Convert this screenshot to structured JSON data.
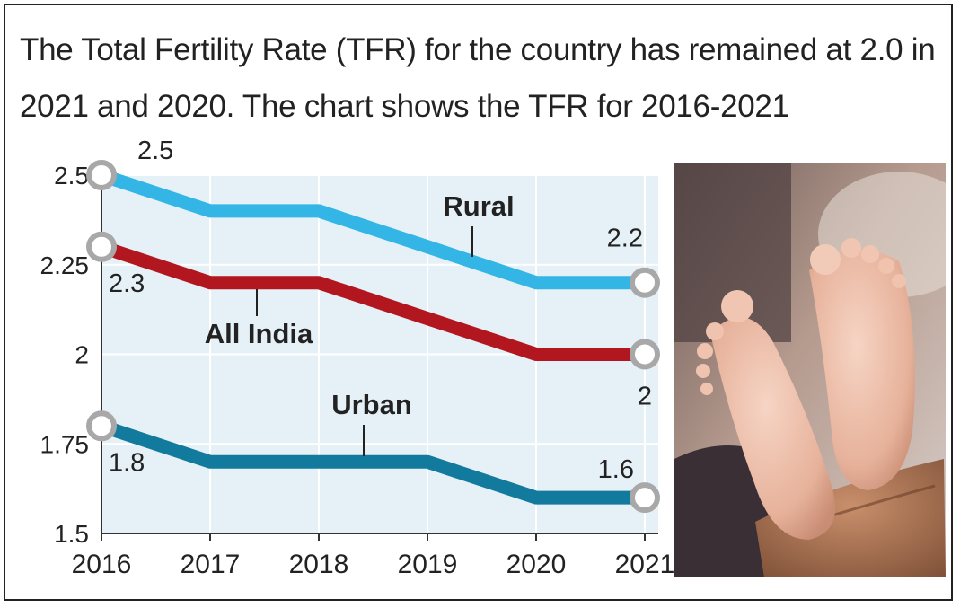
{
  "headline": "The Total Fertility Rate (TFR) for the country has remained at 2.0 in 2021 and 2020. The chart shows the TFR for 2016-2021",
  "colors": {
    "rural": "#33b5e5",
    "all_india": "#b2171f",
    "urban": "#127a9c",
    "plot_bg": "#e6f1f7",
    "marker": "#a8a8a8"
  },
  "photo": {
    "subject": "baby feet held in adult hands"
  },
  "chart_data": {
    "type": "line",
    "x": [
      "2016",
      "2017",
      "2018",
      "2019",
      "2020",
      "2021"
    ],
    "y_ticks": [
      "2.5",
      "2.25",
      "2",
      "1.75",
      "1.5"
    ],
    "ylim": [
      1.5,
      2.5
    ],
    "series": [
      {
        "name": "Rural",
        "key": "rural",
        "values": [
          2.5,
          2.4,
          2.4,
          2.3,
          2.2,
          2.2
        ],
        "labels": [
          {
            "index": 0,
            "text": "2.5"
          },
          {
            "index": 5,
            "text": "2.2"
          }
        ]
      },
      {
        "name": "All India",
        "key": "all_india",
        "values": [
          2.3,
          2.2,
          2.2,
          2.1,
          2.0,
          2.0
        ],
        "labels": [
          {
            "index": 0,
            "text": "2.3"
          },
          {
            "index": 5,
            "text": "2"
          }
        ]
      },
      {
        "name": "Urban",
        "key": "urban",
        "values": [
          1.8,
          1.7,
          1.7,
          1.7,
          1.6,
          1.6
        ],
        "labels": [
          {
            "index": 0,
            "text": "1.8"
          },
          {
            "index": 5,
            "text": "1.6"
          }
        ]
      }
    ]
  }
}
